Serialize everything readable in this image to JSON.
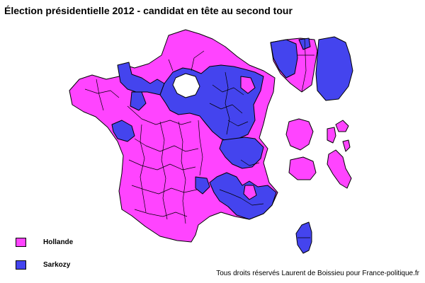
{
  "title": "Élection présidentielle 2012 - candidat en tête au second tour",
  "colors": {
    "hollande": "#ff44ff",
    "sarkozy": "#4444ee",
    "border": "#000000"
  },
  "legend": [
    {
      "key": "hollande",
      "label": "Hollande",
      "color": "#ff44ff"
    },
    {
      "key": "sarkozy",
      "label": "Sarkozy",
      "color": "#4444ee"
    }
  ],
  "credit": "Tous droits réservés Laurent de Boissieu pour France-politique.fr"
}
